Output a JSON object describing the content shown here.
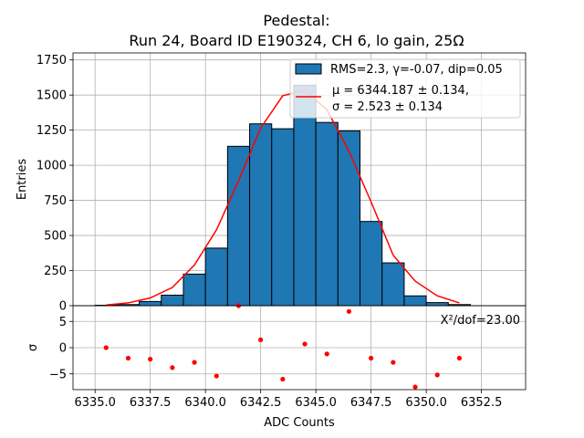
{
  "chart_data": {
    "type": "histogram-with-fit",
    "title": "Pedestal:\nRun 24, Board ID E190324, CH 6, lo gain, 25Ω",
    "title_lines": [
      "Pedestal:",
      "Run 24, Board ID E190324, CH 6, lo gain, 25Ω"
    ],
    "xlabel": "ADC Counts",
    "xlim": [
      6334.0,
      6354.5
    ],
    "xticks": [
      6335.0,
      6337.5,
      6340.0,
      6342.5,
      6345.0,
      6347.5,
      6350.0,
      6352.5
    ],
    "xtick_labels": [
      "6335.0",
      "6337.5",
      "6340.0",
      "6342.5",
      "6345.0",
      "6347.5",
      "6350.0",
      "6352.5"
    ],
    "grid": true,
    "colors": {
      "bars": "#1f77b4",
      "fit": "#ff0000",
      "residuals": "#ff0000",
      "grid": "#b0b0b0"
    },
    "top_panel": {
      "ylabel": "Entries",
      "ylim": [
        0,
        1800
      ],
      "yticks": [
        0,
        250,
        500,
        750,
        1000,
        1250,
        1500,
        1750
      ],
      "ytick_labels": [
        "0",
        "250",
        "500",
        "750",
        "1000",
        "1250",
        "1500",
        "1750"
      ],
      "bins": {
        "edges": [
          6335,
          6336,
          6337,
          6338,
          6339,
          6340,
          6341,
          6342,
          6343,
          6344,
          6345,
          6346,
          6347,
          6348,
          6349,
          6350,
          6351,
          6352
        ],
        "counts": [
          3,
          8,
          30,
          75,
          225,
          410,
          1135,
          1295,
          1260,
          1570,
          1305,
          1245,
          600,
          305,
          70,
          22,
          8
        ]
      },
      "fit": {
        "x": [
          6335.5,
          6336.5,
          6337.5,
          6338.5,
          6339.5,
          6340.5,
          6341.5,
          6342.5,
          6343.5,
          6344.5,
          6345.5,
          6346.5,
          6347.5,
          6348.5,
          6349.5,
          6350.5,
          6351.5
        ],
        "y": [
          5,
          20,
          55,
          130,
          290,
          540,
          890,
          1265,
          1495,
          1535,
          1395,
          1100,
          740,
          360,
          175,
          70,
          20
        ]
      },
      "legend": {
        "location": "upper right",
        "entries": [
          {
            "label": "RMS=2.3, γ=-0.07, dip=0.05",
            "kind": "patch"
          },
          {
            "label_lines": [
              "μ = 6344.187 ± 0.134,",
              "σ = 2.523 ± 0.134"
            ],
            "kind": "line"
          }
        ]
      }
    },
    "bottom_panel": {
      "ylabel": "σ",
      "ylim": [
        -8,
        8
      ],
      "yticks": [
        -5,
        0,
        5
      ],
      "ytick_labels": [
        "−5",
        "0",
        "5"
      ],
      "annotation": "X²/dof=23.00",
      "residuals": {
        "x": [
          6335.5,
          6336.5,
          6337.5,
          6338.5,
          6339.5,
          6340.5,
          6341.5,
          6342.5,
          6343.5,
          6344.5,
          6345.5,
          6346.5,
          6347.5,
          6348.5,
          6349.5,
          6350.5,
          6351.5
        ],
        "y": [
          0.0,
          -2.0,
          -2.2,
          -3.8,
          -2.8,
          -5.4,
          8.0,
          1.5,
          -6.0,
          0.7,
          -1.2,
          6.9,
          -2.0,
          -2.8,
          -7.5,
          -5.2,
          -2.0
        ]
      }
    }
  }
}
